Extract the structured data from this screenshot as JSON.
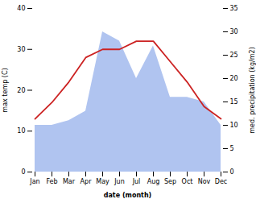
{
  "chart_data": {
    "type": "line",
    "xlabel": "date (month)",
    "ylabel": "max temp (C)",
    "y2label": "med. precipitation (kg/m2)",
    "categories": [
      "Jan",
      "Feb",
      "Mar",
      "Apr",
      "May",
      "Jun",
      "Jul",
      "Aug",
      "Sep",
      "Oct",
      "Nov",
      "Dec"
    ],
    "series": [
      {
        "type": "area",
        "axis": "y2",
        "color": "#b0c4f0",
        "values": [
          10,
          10,
          11,
          13,
          30,
          28,
          20,
          27,
          16,
          16,
          15,
          10
        ]
      },
      {
        "type": "line",
        "color": "#cc2222",
        "values": [
          13,
          17,
          22,
          28,
          30,
          30,
          32,
          32,
          27,
          22,
          16,
          13
        ]
      }
    ],
    "ylim": [
      0,
      40
    ],
    "yticks": [
      0,
      10,
      20,
      30,
      40
    ],
    "y2lim": [
      0,
      35
    ],
    "y2ticks": [
      0,
      5,
      10,
      15,
      20,
      25,
      30,
      35
    ]
  }
}
